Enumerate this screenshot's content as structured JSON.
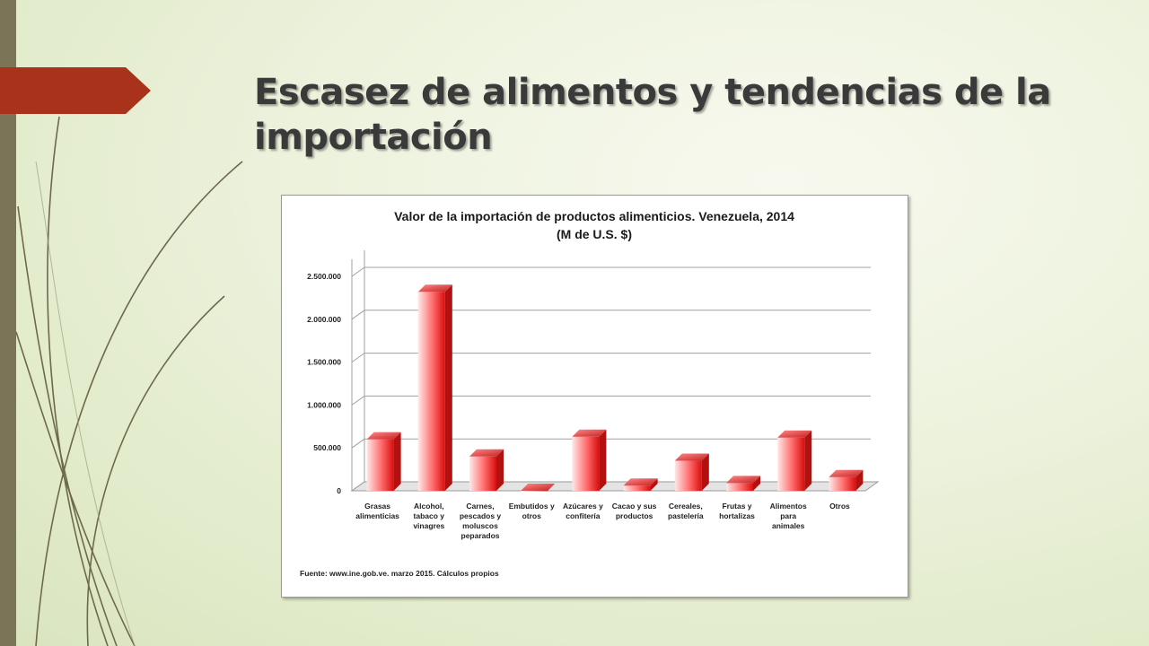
{
  "slide": {
    "title": "Escasez de alimentos y tendencias de la importación"
  },
  "colors": {
    "side_bar": "#7c7456",
    "title_tab": "#a8321a",
    "bar_fill_light": "#ffe8e8",
    "bar_fill_dark": "#d90e0e",
    "gridline": "#a0a0a0"
  },
  "chart_data": {
    "type": "bar",
    "title_line1": "Valor de la importación de productos alimenticios. Venezuela, 2014",
    "title_line2": "(M de U.S. $)",
    "categories": [
      [
        "Grasas",
        "alimenticias"
      ],
      [
        "Alcohol,",
        "tabaco y",
        "vinagres"
      ],
      [
        "Carnes,",
        "pescados y",
        "moluscos",
        "peparados"
      ],
      [
        "Embutidos y",
        "otros"
      ],
      [
        "Azúcares y",
        "confitería"
      ],
      [
        "Cacao y sus",
        "productos"
      ],
      [
        "Cereales,",
        "pastelería"
      ],
      [
        "Frutas y",
        "hortalizas"
      ],
      [
        "Alimentos",
        "para",
        "animales"
      ],
      [
        "Otros"
      ]
    ],
    "values": [
      600000,
      2320000,
      400000,
      0,
      630000,
      60000,
      350000,
      90000,
      620000,
      160000
    ],
    "yticks": [
      "0",
      "500.000",
      "1.000.000",
      "1.500.000",
      "2.000.000",
      "2.500.000"
    ],
    "ytick_values": [
      0,
      500000,
      1000000,
      1500000,
      2000000,
      2500000
    ],
    "ylim": [
      0,
      2700000
    ],
    "grid": true,
    "source": "Fuente: www.ine.gob.ve. marzo 2015. Cálculos propios"
  }
}
